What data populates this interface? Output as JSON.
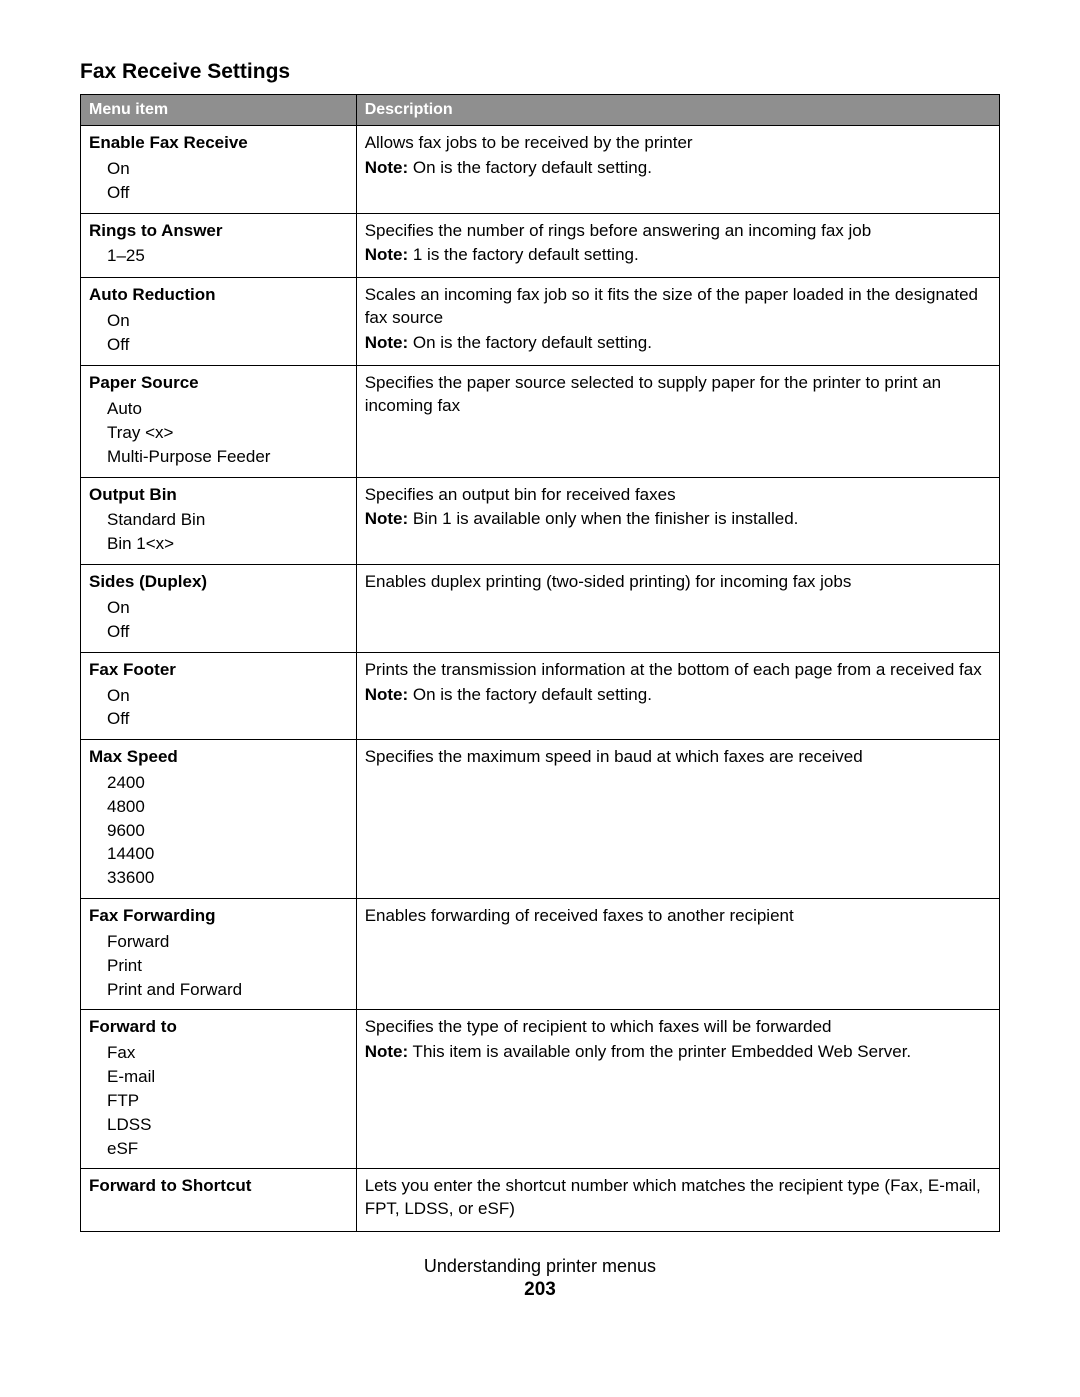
{
  "section_title": "Fax Receive Settings",
  "header": {
    "menu_item": "Menu item",
    "description": "Description"
  },
  "note_label": "Note:",
  "footer_text": "Understanding printer menus",
  "page_number": "203",
  "rows": [
    {
      "title": "Enable Fax Receive",
      "options": [
        "On",
        "Off"
      ],
      "desc": "Allows fax jobs to be received by the printer",
      "note": "On is the factory default setting."
    },
    {
      "title": "Rings to Answer",
      "options": [
        "1–25"
      ],
      "desc": "Specifies the number of rings before answering an incoming fax job",
      "note": "1 is the factory default setting."
    },
    {
      "title": "Auto Reduction",
      "options": [
        "On",
        "Off"
      ],
      "desc": "Scales an incoming fax job so it fits the size of the paper loaded in the designated fax source",
      "note": "On is the factory default setting."
    },
    {
      "title": "Paper Source",
      "options": [
        "Auto",
        "Tray <x>",
        "Multi-Purpose Feeder"
      ],
      "desc": "Specifies the paper source selected to supply paper for the printer to print an incoming fax",
      "note": ""
    },
    {
      "title": "Output Bin",
      "options": [
        "Standard Bin",
        "Bin 1<x>"
      ],
      "desc": "Specifies an output bin for received faxes",
      "note": "Bin 1 is available only when the finisher is installed."
    },
    {
      "title": "Sides (Duplex)",
      "options": [
        "On",
        "Off"
      ],
      "desc": "Enables duplex printing (two-sided printing) for incoming fax jobs",
      "note": ""
    },
    {
      "title": "Fax Footer",
      "options": [
        "On",
        "Off"
      ],
      "desc": "Prints the transmission information at the bottom of each page from a received fax",
      "note": "On is the factory default setting."
    },
    {
      "title": "Max Speed",
      "options": [
        "2400",
        "4800",
        "9600",
        "14400",
        "33600"
      ],
      "desc": "Specifies the maximum speed in baud at which faxes are received",
      "note": ""
    },
    {
      "title": "Fax Forwarding",
      "options": [
        "Forward",
        "Print",
        "Print and Forward"
      ],
      "desc": "Enables forwarding of received faxes to another recipient",
      "note": ""
    },
    {
      "title": "Forward to",
      "options": [
        "Fax",
        "E-mail",
        "FTP",
        "LDSS",
        "eSF"
      ],
      "desc": "Specifies the type of recipient to which faxes will be forwarded",
      "note": "This item is available only from the printer Embedded Web Server."
    },
    {
      "title": "Forward to Shortcut",
      "options": [],
      "desc": "Lets you enter the shortcut number which matches the recipient type (Fax, E-mail, FPT, LDSS, or eSF)",
      "note": ""
    }
  ]
}
